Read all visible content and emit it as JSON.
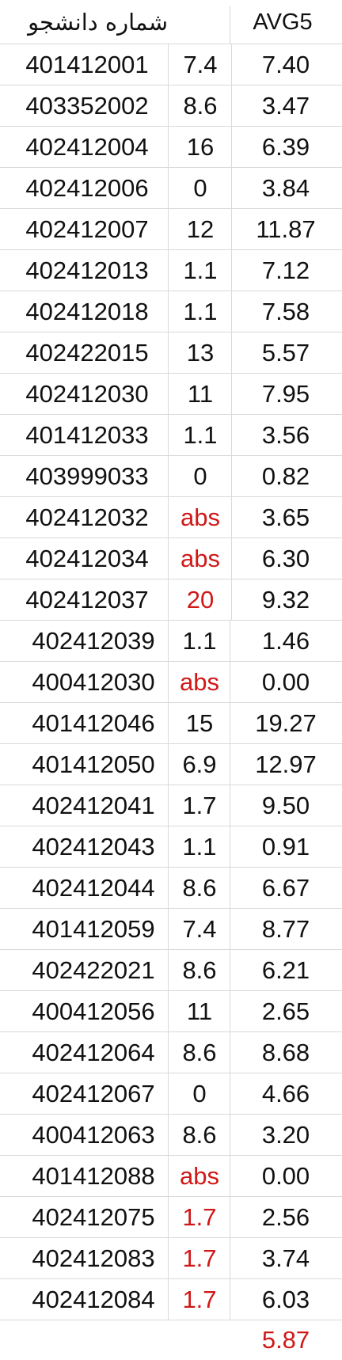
{
  "header": {
    "student_id_label": "شماره دانشجو",
    "avg_label": "AVG5"
  },
  "colors": {
    "normal": "#111111",
    "highlight": "#d01818"
  },
  "rows": [
    {
      "id": "401412001",
      "score": "7.4",
      "avg": "7.40",
      "red": false
    },
    {
      "id": "403352002",
      "score": "8.6",
      "avg": "3.47",
      "red": false
    },
    {
      "id": "402412004",
      "score": "16",
      "avg": "6.39",
      "red": false
    },
    {
      "id": "402412006",
      "score": "0",
      "avg": "3.84",
      "red": false
    },
    {
      "id": "402412007",
      "score": "12",
      "avg": "11.87",
      "red": false
    },
    {
      "id": "402412013",
      "score": "1.1",
      "avg": "7.12",
      "red": false
    },
    {
      "id": "402412018",
      "score": "1.1",
      "avg": "7.58",
      "red": false
    },
    {
      "id": "402422015",
      "score": "13",
      "avg": "5.57",
      "red": false
    },
    {
      "id": "402412030",
      "score": "11",
      "avg": "7.95",
      "red": false
    },
    {
      "id": "401412033",
      "score": "1.1",
      "avg": "3.56",
      "red": false
    },
    {
      "id": "403999033",
      "score": "0",
      "avg": "0.82",
      "red": false
    },
    {
      "id": "402412032",
      "score": "abs",
      "avg": "3.65",
      "red": true
    },
    {
      "id": "402412034",
      "score": "abs",
      "avg": "6.30",
      "red": true
    },
    {
      "id": "402412037",
      "score": "20",
      "avg": "9.32",
      "red": true
    },
    {
      "id": "402412039",
      "score": "1.1",
      "avg": "1.46",
      "red": false
    },
    {
      "id": "400412030",
      "score": "abs",
      "avg": "0.00",
      "red": true
    },
    {
      "id": "401412046",
      "score": "15",
      "avg": "19.27",
      "red": false
    },
    {
      "id": "401412050",
      "score": "6.9",
      "avg": "12.97",
      "red": false
    },
    {
      "id": "402412041",
      "score": "1.7",
      "avg": "9.50",
      "red": false
    },
    {
      "id": "402412043",
      "score": "1.1",
      "avg": "0.91",
      "red": false
    },
    {
      "id": "402412044",
      "score": "8.6",
      "avg": "6.67",
      "red": false
    },
    {
      "id": "401412059",
      "score": "7.4",
      "avg": "8.77",
      "red": false
    },
    {
      "id": "402422021",
      "score": "8.6",
      "avg": "6.21",
      "red": false
    },
    {
      "id": "400412056",
      "score": "11",
      "avg": "2.65",
      "red": false
    },
    {
      "id": "402412064",
      "score": "8.6",
      "avg": "8.68",
      "red": false
    },
    {
      "id": "402412067",
      "score": "0",
      "avg": "4.66",
      "red": false
    },
    {
      "id": "400412063",
      "score": "8.6",
      "avg": "3.20",
      "red": false
    },
    {
      "id": "401412088",
      "score": "abs",
      "avg": "0.00",
      "red": true
    },
    {
      "id": "402412075",
      "score": "1.7",
      "avg": "2.56",
      "red": true
    },
    {
      "id": "402412083",
      "score": "1.7",
      "avg": "3.74",
      "red": true
    },
    {
      "id": "402412084",
      "score": "1.7",
      "avg": "6.03",
      "red": true
    }
  ],
  "footer": {
    "overall_avg": "5.87"
  }
}
